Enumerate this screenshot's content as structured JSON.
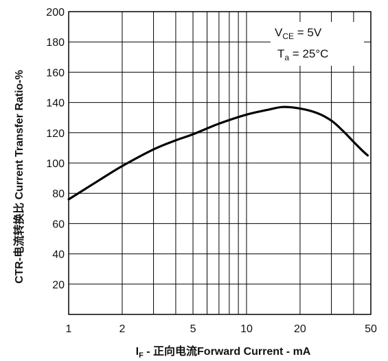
{
  "chart_data": {
    "type": "line",
    "xlabel": {
      "sym": "I",
      "sub": "F",
      "rest": " - 正向电流Forward Current - mA"
    },
    "ylabel": "CTR-电流转换比 Current Transfer Ratio-%",
    "xscale": "log",
    "xlim": [
      1,
      50
    ],
    "ylim": [
      0,
      200
    ],
    "grid": true,
    "x_tick_labels": [
      "1",
      "2",
      "5",
      "10",
      "20",
      "50"
    ],
    "y_tick_labels": [
      "20",
      "40",
      "60",
      "80",
      "100",
      "120",
      "140",
      "160",
      "180",
      "200"
    ],
    "annotation": {
      "line1_main": "V",
      "line1_sub": "CE",
      "line1_rest": " = 5V",
      "line2_main": "T",
      "line2_sub": "a",
      "line2_rest": " = 25°C"
    },
    "series": [
      {
        "x": [
          1,
          1.5,
          2,
          3,
          4,
          5,
          7,
          10,
          13,
          16,
          20,
          25,
          30,
          35,
          40,
          45,
          48
        ],
        "y": [
          76,
          89,
          98,
          109,
          115,
          119,
          126,
          132,
          135,
          137,
          136,
          133,
          128,
          121,
          114,
          108,
          105
        ],
        "color": "#000000"
      }
    ]
  }
}
